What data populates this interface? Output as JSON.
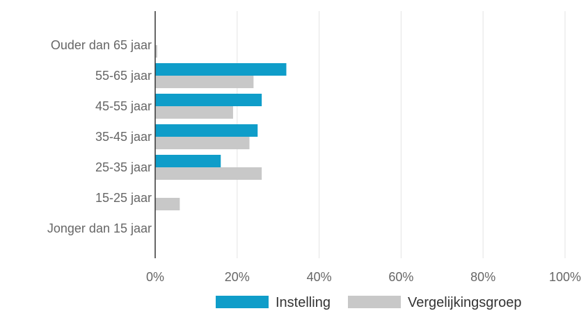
{
  "chart_data": {
    "type": "bar",
    "orientation": "horizontal",
    "categories": [
      "Ouder dan 65 jaar",
      "55-65 jaar",
      "45-55 jaar",
      "35-45 jaar",
      "25-35 jaar",
      "15-25 jaar",
      "Jonger dan 15 jaar"
    ],
    "series": [
      {
        "name": "Instelling",
        "color": "#0f9dc9",
        "values": [
          0,
          32,
          26,
          25,
          16,
          0,
          0
        ]
      },
      {
        "name": "Vergelijkingsgroep",
        "color": "#c8c8c8",
        "values": [
          0.5,
          24,
          19,
          23,
          26,
          6,
          0
        ]
      }
    ],
    "xlim": [
      0,
      100
    ],
    "x_ticks": [
      "0%",
      "20%",
      "40%",
      "60%",
      "80%",
      "100%"
    ],
    "grid": true,
    "legend_position": "bottom"
  }
}
